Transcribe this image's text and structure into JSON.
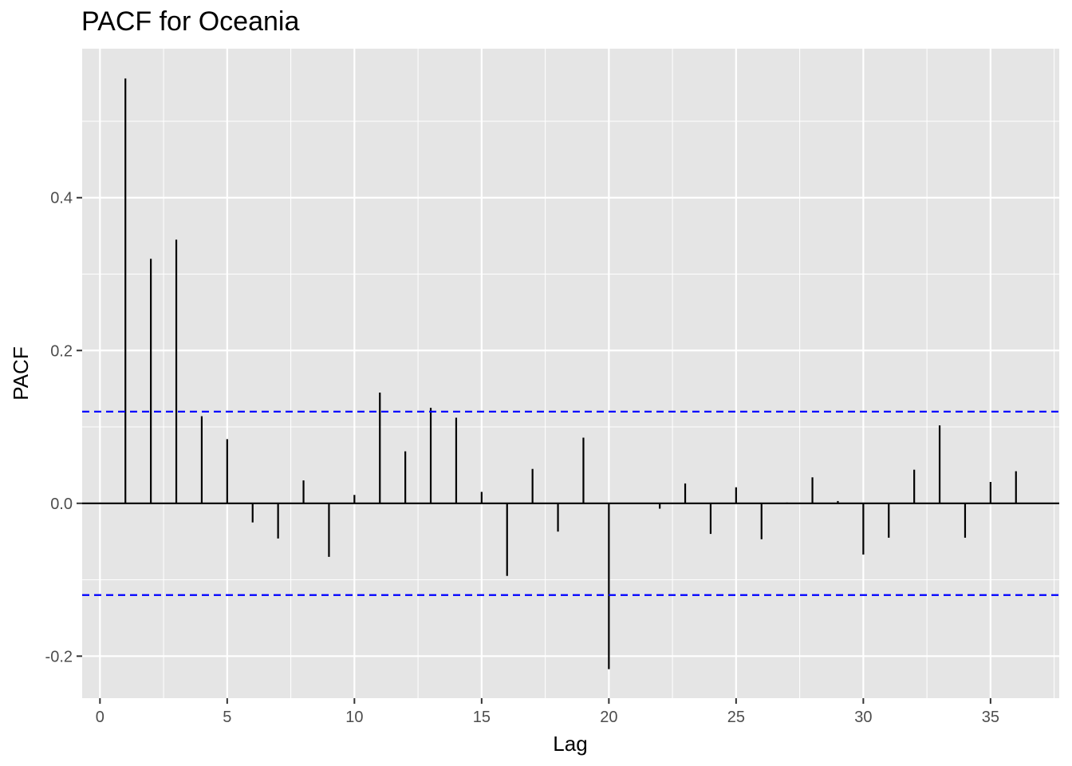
{
  "chart_data": {
    "type": "bar",
    "title": "PACF for Oceania",
    "xlabel": "Lag",
    "ylabel": "PACF",
    "xlim": [
      -0.7,
      37.7
    ],
    "ylim": [
      -0.255,
      0.595
    ],
    "x_ticks": [
      0,
      5,
      10,
      15,
      20,
      25,
      30,
      35
    ],
    "y_ticks": [
      -0.2,
      0.0,
      0.2,
      0.4
    ],
    "y_tick_labels": [
      "-0.2",
      "0.0",
      "0.2",
      "0.4"
    ],
    "lags": [
      1,
      2,
      3,
      4,
      5,
      6,
      7,
      8,
      9,
      10,
      11,
      12,
      13,
      14,
      15,
      16,
      17,
      18,
      19,
      20,
      21,
      22,
      23,
      24,
      25,
      26,
      27,
      28,
      29,
      30,
      31,
      32,
      33,
      34,
      35,
      36
    ],
    "values": [
      0.556,
      0.32,
      0.345,
      0.114,
      0.084,
      -0.025,
      -0.046,
      0.03,
      -0.07,
      0.011,
      0.145,
      0.068,
      0.125,
      0.112,
      0.015,
      -0.095,
      0.045,
      -0.037,
      0.086,
      -0.217,
      0.0,
      -0.007,
      0.026,
      -0.04,
      0.021,
      -0.047,
      0.001,
      0.034,
      0.003,
      -0.067,
      -0.045,
      0.044,
      0.102,
      -0.045,
      0.028,
      0.042
    ],
    "confidence_bounds": [
      0.12,
      -0.12
    ],
    "grid": true,
    "colors": {
      "panel": "#e5e5e5",
      "grid": "#ffffff",
      "bars": "#000000",
      "bounds": "#0000ff"
    }
  }
}
